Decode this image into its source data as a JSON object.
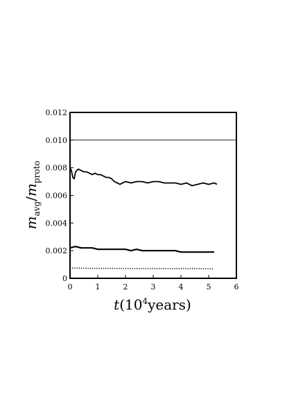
{
  "chart_data": {
    "type": "line",
    "title": "",
    "xlabel": {
      "main": "t",
      "paren_open": "(",
      "base": "10",
      "exp": "4",
      "unit": "years",
      "paren_close": ")"
    },
    "ylabel": {
      "numerator": "m",
      "numerator_sub": "avg",
      "slash": "/",
      "denominator": "m",
      "denominator_sub": "proto"
    },
    "xlim": [
      0,
      6
    ],
    "ylim": [
      0,
      0.012
    ],
    "xticks": [
      "0",
      "1",
      "2",
      "3",
      "4",
      "5",
      "6"
    ],
    "yticks": [
      "0",
      "0.002",
      "0.004",
      "0.006",
      "0.008",
      "0.010",
      "0.012"
    ],
    "grid": false,
    "series": [
      {
        "style": "solid-thin",
        "color": "#000000",
        "x": [
          0,
          6
        ],
        "y": [
          0.01,
          0.01
        ]
      },
      {
        "style": "noisy-thick",
        "color": "#000000",
        "x": [
          0.0,
          0.05,
          0.1,
          0.15,
          0.2,
          0.3,
          0.4,
          0.5,
          0.6,
          0.7,
          0.8,
          0.9,
          1.0,
          1.1,
          1.2,
          1.3,
          1.4,
          1.5,
          1.6,
          1.7,
          1.8,
          1.9,
          2.0,
          2.2,
          2.4,
          2.6,
          2.8,
          3.0,
          3.2,
          3.4,
          3.6,
          3.8,
          4.0,
          4.2,
          4.4,
          4.6,
          4.8,
          5.0,
          5.2,
          5.3
        ],
        "y": [
          0.008,
          0.0078,
          0.0073,
          0.0072,
          0.0077,
          0.0079,
          0.0078,
          0.0077,
          0.0077,
          0.0076,
          0.0075,
          0.0076,
          0.0075,
          0.0075,
          0.0074,
          0.0073,
          0.0073,
          0.0072,
          0.007,
          0.0069,
          0.0068,
          0.0069,
          0.007,
          0.0069,
          0.007,
          0.007,
          0.0069,
          0.007,
          0.007,
          0.0069,
          0.0069,
          0.0069,
          0.0068,
          0.0069,
          0.0067,
          0.0068,
          0.0069,
          0.0068,
          0.0069,
          0.0068
        ]
      },
      {
        "style": "noisy-medium",
        "color": "#000000",
        "x": [
          0.0,
          0.2,
          0.4,
          0.6,
          0.8,
          1.0,
          1.2,
          1.4,
          1.6,
          1.8,
          2.0,
          2.2,
          2.4,
          2.6,
          2.8,
          3.0,
          3.2,
          3.4,
          3.6,
          3.8,
          4.0,
          4.2,
          4.4,
          4.6,
          4.8,
          5.0,
          5.2
        ],
        "y": [
          0.0022,
          0.0023,
          0.0022,
          0.0022,
          0.0022,
          0.0021,
          0.0021,
          0.0021,
          0.0021,
          0.0021,
          0.0021,
          0.002,
          0.0021,
          0.002,
          0.002,
          0.002,
          0.002,
          0.002,
          0.002,
          0.002,
          0.0019,
          0.0019,
          0.0019,
          0.0019,
          0.0019,
          0.0019,
          0.0019
        ]
      },
      {
        "style": "dotted",
        "color": "#000000",
        "x": [
          0.0,
          0.5,
          1.0,
          1.5,
          2.0,
          2.5,
          3.0,
          3.5,
          4.0,
          4.5,
          5.0,
          5.2
        ],
        "y": [
          0.00075,
          0.00073,
          0.00072,
          0.00072,
          0.00071,
          0.00071,
          0.0007,
          0.0007,
          0.0007,
          0.0007,
          0.00069,
          0.00069
        ]
      }
    ]
  }
}
